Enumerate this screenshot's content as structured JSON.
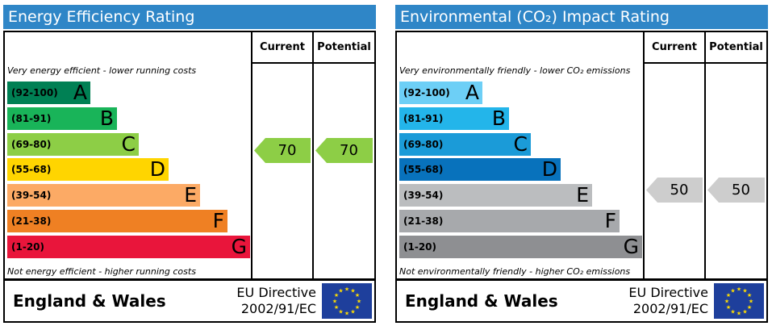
{
  "energy": {
    "title": "Energy Efficiency Rating",
    "col_current": "Current",
    "col_potential": "Potential",
    "top_note": "Very energy efficient - lower running costs",
    "bottom_note": "Not energy efficient - higher running costs",
    "bands": [
      {
        "range": "(92-100)",
        "letter": "A",
        "color": "#008054"
      },
      {
        "range": "(81-91)",
        "letter": "B",
        "color": "#19b459"
      },
      {
        "range": "(69-80)",
        "letter": "C",
        "color": "#8dce46"
      },
      {
        "range": "(55-68)",
        "letter": "D",
        "color": "#ffd500"
      },
      {
        "range": "(39-54)",
        "letter": "E",
        "color": "#fcaa65"
      },
      {
        "range": "(21-38)",
        "letter": "F",
        "color": "#ef8023"
      },
      {
        "range": "(1-20)",
        "letter": "G",
        "color": "#e9153b"
      }
    ],
    "current": "70",
    "potential": "70",
    "arrow_color": "#8dce46",
    "country": "England & Wales",
    "directive_line1": "EU Directive",
    "directive_line2": "2002/91/EC"
  },
  "environmental": {
    "title": "Environmental (CO₂) Impact Rating",
    "col_current": "Current",
    "col_potential": "Potential",
    "top_note": "Very environmentally friendly - lower CO₂ emissions",
    "bottom_note": "Not environmentally friendly - higher CO₂ emissions",
    "bands": [
      {
        "range": "(92-100)",
        "letter": "A",
        "color": "#6dcff6"
      },
      {
        "range": "(81-91)",
        "letter": "B",
        "color": "#23b5ea"
      },
      {
        "range": "(69-80)",
        "letter": "C",
        "color": "#1b9bd8"
      },
      {
        "range": "(55-68)",
        "letter": "D",
        "color": "#0872bc"
      },
      {
        "range": "(39-54)",
        "letter": "E",
        "color": "#bbbdbf"
      },
      {
        "range": "(21-38)",
        "letter": "F",
        "color": "#a7a9ac"
      },
      {
        "range": "(1-20)",
        "letter": "G",
        "color": "#8e8f92"
      }
    ],
    "current": "50",
    "potential": "50",
    "arrow_color": "#cdcdcd",
    "country": "England & Wales",
    "directive_line1": "EU Directive",
    "directive_line2": "2002/91/EC"
  },
  "colors": {
    "title_bar": "#2f86c7",
    "eu_flag_blue": "#1e3f9c",
    "eu_flag_stars": "#ffdd00"
  },
  "icons": {
    "eu_flag": "eu-flag-icon"
  }
}
